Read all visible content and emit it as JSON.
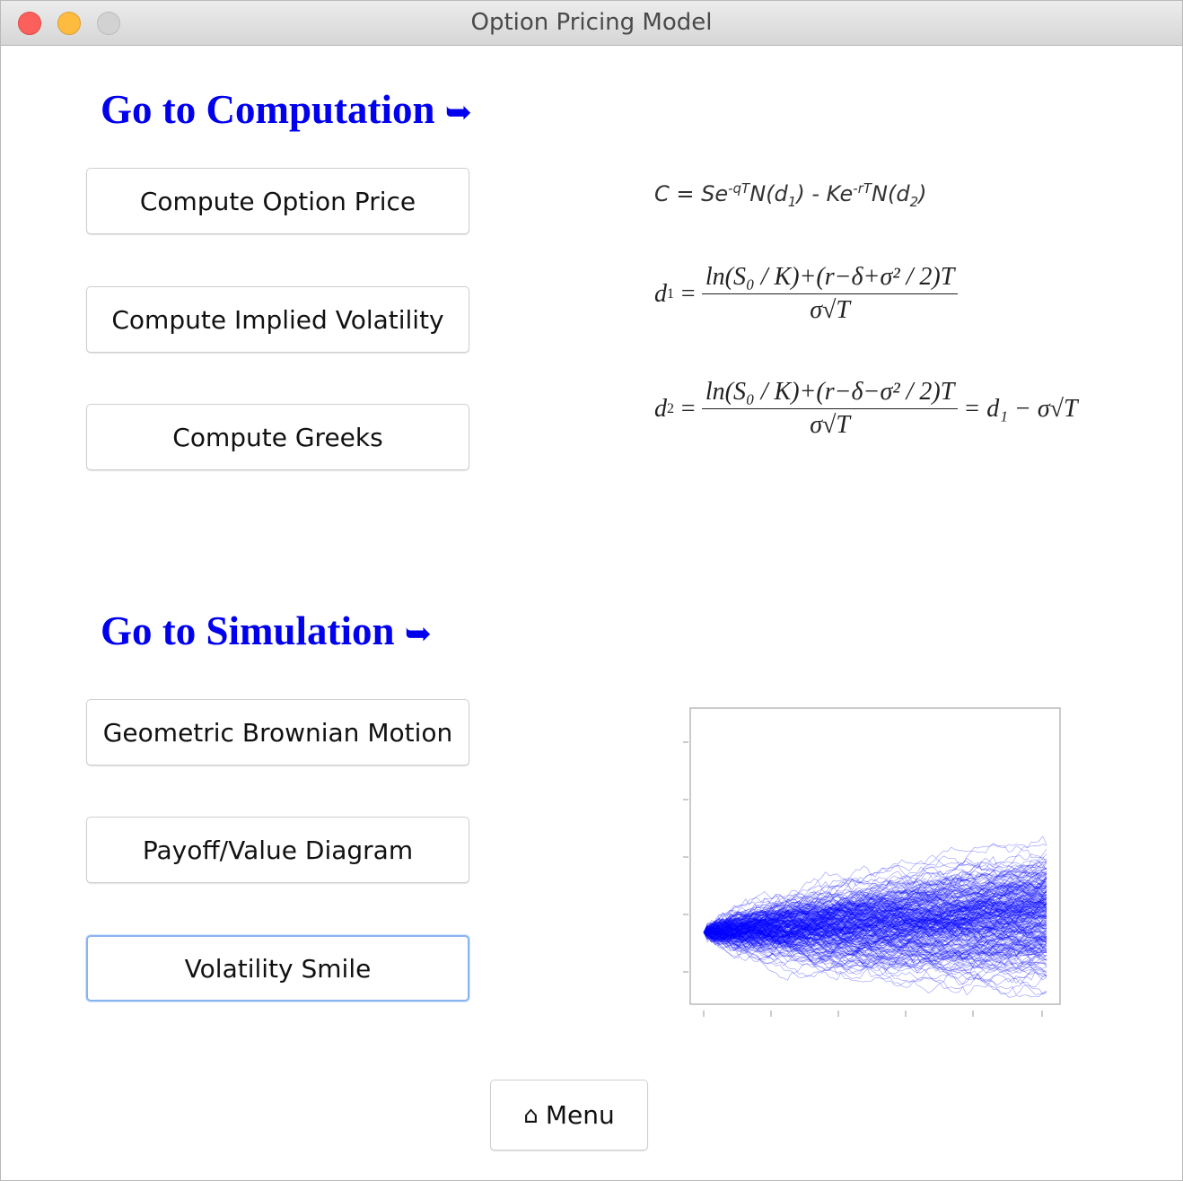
{
  "window": {
    "title": "Option Pricing Model"
  },
  "computation": {
    "heading": "Go to Computation",
    "arrow": "➥",
    "buttons": [
      {
        "label": "Compute Option Price"
      },
      {
        "label": "Compute Implied Volatility"
      },
      {
        "label": "Compute Greeks"
      }
    ]
  },
  "simulation": {
    "heading": "Go to Simulation",
    "arrow": "➥",
    "buttons": [
      {
        "label": "Geometric Brownian Motion"
      },
      {
        "label": "Payoff/Value Diagram"
      },
      {
        "label": "Volatility Smile"
      }
    ]
  },
  "formulas": {
    "call_price": {
      "lhs": "C = Se",
      "exp1": "-qT",
      "mid": "N(d",
      "sub1": "1",
      "mid2": ") - Ke",
      "exp2": "-rT",
      "mid3": "N(d",
      "sub2": "2",
      "end": ")"
    },
    "d1": {
      "lhs": "d",
      "lhs_sub": "1",
      "eq": "=",
      "numerator": "ln(S₀ / K)+(r−δ+σ² / 2)T",
      "denominator": "σ√T"
    },
    "d2": {
      "lhs": "d",
      "lhs_sub": "2",
      "eq": "=",
      "numerator": "ln(S₀ / K)+(r−δ−σ² / 2)T",
      "denominator": "σ√T",
      "tail": "= d₁ − σ√T"
    }
  },
  "menu": {
    "icon": "home-icon",
    "label": "Menu"
  },
  "colors": {
    "heading": "#0000ee",
    "paths": "#0000ff"
  }
}
